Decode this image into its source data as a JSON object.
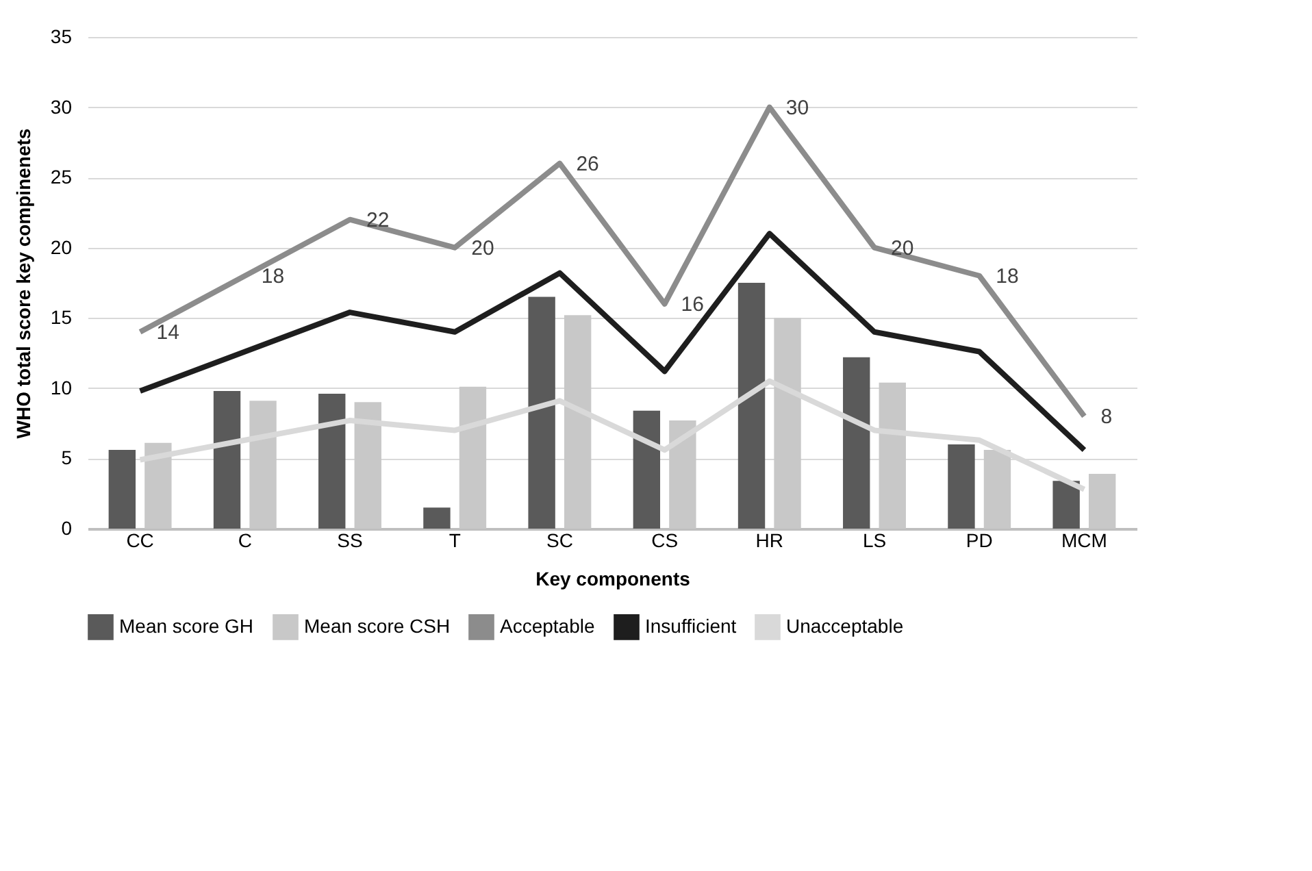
{
  "chart_data": {
    "type": "bar",
    "xlabel": "Key components",
    "ylabel": "WHO total score key compinenets",
    "categories": [
      "CC",
      "C",
      "SS",
      "T",
      "SC",
      "CS",
      "HR",
      "LS",
      "PD",
      "MCM"
    ],
    "series": [
      {
        "name": "Mean score GH",
        "color": "#5a5a5a",
        "values": [
          5.6,
          9.8,
          9.6,
          1.5,
          16.5,
          8.4,
          17.5,
          12.2,
          6.0,
          3.4
        ]
      },
      {
        "name": "Mean score CSH",
        "color": "#c8c8c8",
        "values": [
          6.1,
          9.1,
          9.0,
          10.1,
          15.2,
          7.7,
          15.0,
          10.4,
          5.6,
          3.9
        ]
      },
      {
        "name": "Acceptable",
        "type": "line",
        "color": "#8c8c8c",
        "values": [
          14,
          18,
          22,
          20,
          26,
          16,
          30,
          20,
          18,
          8
        ],
        "value_labels": [
          "14",
          "18",
          "22",
          "20",
          "26",
          "16",
          "30",
          "20",
          "18",
          "8"
        ]
      },
      {
        "name": "Insufficient",
        "type": "line",
        "color": "#1e1e1e",
        "values": [
          9.8,
          12.6,
          15.4,
          14,
          18.2,
          11.2,
          21,
          14,
          12.6,
          5.6
        ]
      },
      {
        "name": "Unacceptable",
        "type": "line",
        "color": "#d9d9d9",
        "values": [
          4.9,
          6.3,
          7.7,
          7,
          9.1,
          5.6,
          10.5,
          7,
          6.3,
          2.8
        ]
      }
    ],
    "ylim": [
      0,
      35
    ],
    "yticks": [
      0,
      5,
      10,
      15,
      20,
      25,
      30,
      35
    ],
    "grid": "y",
    "legend": "bottom"
  }
}
